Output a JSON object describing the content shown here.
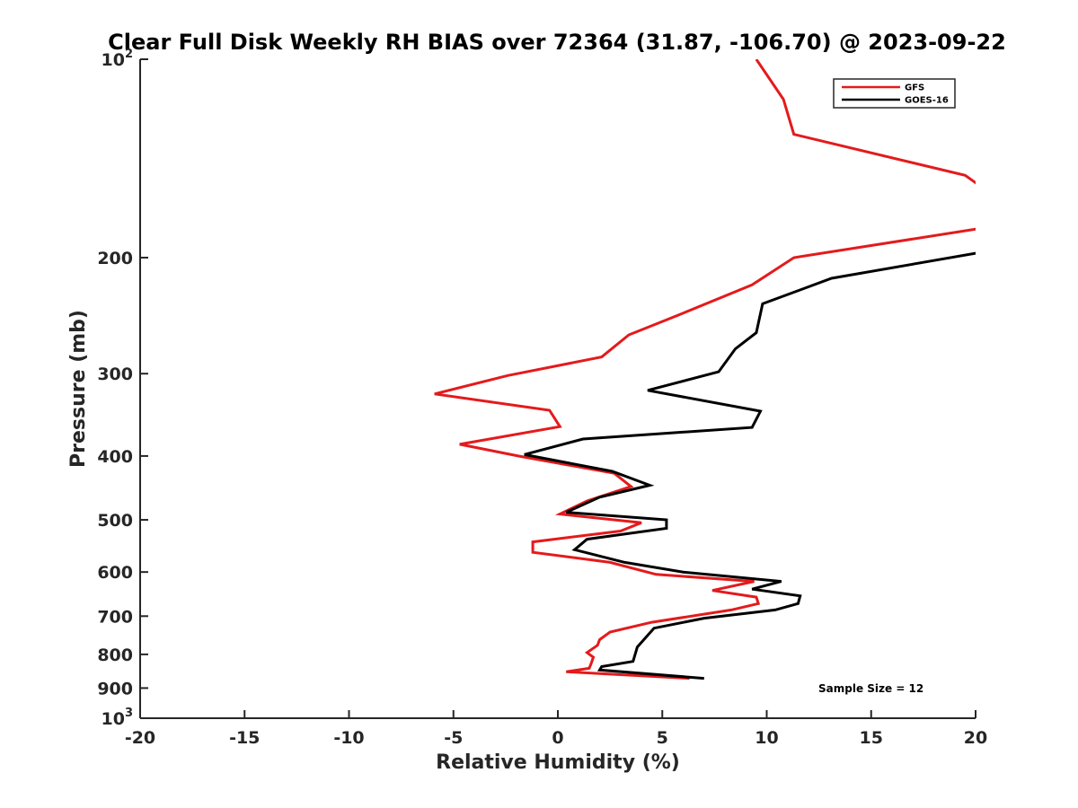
{
  "chart_data": {
    "type": "line",
    "title": "Clear Full Disk Weekly RH BIAS over 72364 (31.87, -106.70) @ 2023-09-22",
    "xlabel": "Relative Humidity (%)",
    "ylabel": "Pressure (mb)",
    "xlim": [
      -20,
      20
    ],
    "ylim": [
      1000,
      100
    ],
    "yscale": "log",
    "y_reversed": true,
    "x_ticks": [
      {
        "value": -20,
        "label": "-20"
      },
      {
        "value": -15,
        "label": "-15"
      },
      {
        "value": -10,
        "label": "-10"
      },
      {
        "value": -5,
        "label": "-5"
      },
      {
        "value": 0,
        "label": "0"
      },
      {
        "value": 5,
        "label": "5"
      },
      {
        "value": 10,
        "label": "10"
      },
      {
        "value": 15,
        "label": "15"
      },
      {
        "value": 20,
        "label": "20"
      }
    ],
    "y_ticks": [
      {
        "value": 100,
        "base": "10",
        "exp": "2"
      },
      {
        "value": 200,
        "label": "200"
      },
      {
        "value": 300,
        "label": "300"
      },
      {
        "value": 400,
        "label": "400"
      },
      {
        "value": 500,
        "label": "500"
      },
      {
        "value": 600,
        "label": "600"
      },
      {
        "value": 700,
        "label": "700"
      },
      {
        "value": 800,
        "label": "800"
      },
      {
        "value": 900,
        "label": "900"
      },
      {
        "value": 1000,
        "base": "10",
        "exp": "3"
      }
    ],
    "grid": false,
    "legend_position": "top-right",
    "annotation": "Sample Size = 12",
    "series": [
      {
        "name": "GFS",
        "color": "#e41a1c",
        "points": [
          [
            9.5,
            100
          ],
          [
            10.8,
            115
          ],
          [
            11.3,
            130
          ],
          [
            19.5,
            150
          ],
          [
            20.5,
            158
          ],
          [
            20.5,
            180
          ],
          [
            11.3,
            200
          ],
          [
            9.3,
            220
          ],
          [
            5.7,
            245
          ],
          [
            3.4,
            262
          ],
          [
            2.1,
            283
          ],
          [
            -2.4,
            302
          ],
          [
            -5.9,
            322
          ],
          [
            -0.4,
            341
          ],
          [
            0.1,
            361
          ],
          [
            -4.7,
            384
          ],
          [
            -1.9,
            400
          ],
          [
            2.7,
            425
          ],
          [
            3.5,
            445
          ],
          [
            1.4,
            468
          ],
          [
            0.1,
            490
          ],
          [
            4.0,
            505
          ],
          [
            3.0,
            520
          ],
          [
            -1.2,
            540
          ],
          [
            -1.2,
            560
          ],
          [
            2.5,
            580
          ],
          [
            4.7,
            605
          ],
          [
            9.4,
            620
          ],
          [
            7.4,
            640
          ],
          [
            9.5,
            655
          ],
          [
            9.6,
            670
          ],
          [
            8.3,
            685
          ],
          [
            4.5,
            715
          ],
          [
            2.5,
            740
          ],
          [
            2.0,
            760
          ],
          [
            1.9,
            775
          ],
          [
            1.4,
            795
          ],
          [
            1.7,
            808
          ],
          [
            1.6,
            825
          ],
          [
            1.5,
            840
          ],
          [
            0.4,
            850
          ],
          [
            6.3,
            870
          ]
        ]
      },
      {
        "name": "GOES-16",
        "color": "#000000",
        "points": [
          [
            21.0,
            195
          ],
          [
            20.0,
            197
          ],
          [
            13.1,
            215
          ],
          [
            9.8,
            235
          ],
          [
            9.5,
            260
          ],
          [
            8.5,
            275
          ],
          [
            7.7,
            298
          ],
          [
            4.3,
            318
          ],
          [
            9.7,
            342
          ],
          [
            9.3,
            362
          ],
          [
            1.2,
            377
          ],
          [
            -1.6,
            398
          ],
          [
            2.6,
            422
          ],
          [
            4.4,
            443
          ],
          [
            2.0,
            462
          ],
          [
            0.4,
            487
          ],
          [
            5.2,
            500
          ],
          [
            5.2,
            515
          ],
          [
            1.4,
            535
          ],
          [
            0.8,
            555
          ],
          [
            3.2,
            580
          ],
          [
            6.0,
            600
          ],
          [
            10.7,
            620
          ],
          [
            9.3,
            637
          ],
          [
            11.6,
            652
          ],
          [
            11.5,
            670
          ],
          [
            10.4,
            685
          ],
          [
            7.0,
            705
          ],
          [
            4.6,
            730
          ],
          [
            4.2,
            755
          ],
          [
            3.8,
            780
          ],
          [
            3.7,
            800
          ],
          [
            3.6,
            820
          ],
          [
            2.1,
            835
          ],
          [
            2.0,
            845
          ],
          [
            7.0,
            870
          ]
        ]
      }
    ]
  }
}
